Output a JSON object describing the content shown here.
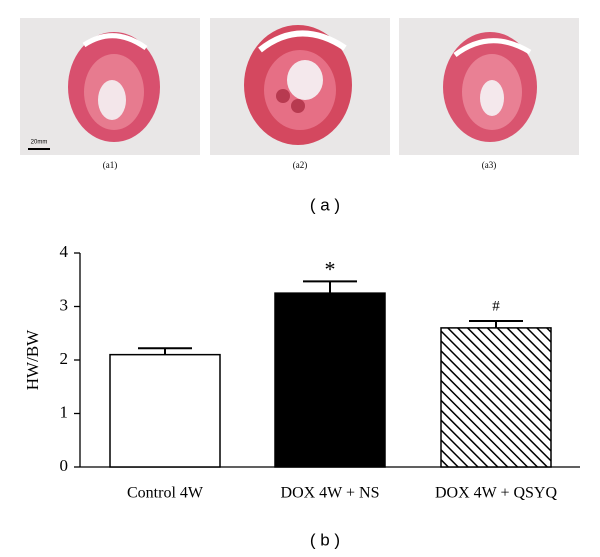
{
  "panels": {
    "images": [
      {
        "label": "(a1)",
        "scale": "20mm"
      },
      {
        "label": "(a2)"
      },
      {
        "label": "(a3)"
      }
    ],
    "caption": "( a )"
  },
  "chart_data": {
    "type": "bar",
    "caption": "( b )",
    "y_label": "HW/BW",
    "categories": [
      "Control 4W",
      "DOX 4W + NS",
      "DOX 4W + QSYQ"
    ],
    "values": [
      2.1,
      3.25,
      2.6
    ],
    "errors": [
      0.12,
      0.22,
      0.13
    ],
    "fills": [
      "white",
      "black",
      "hatched"
    ],
    "annotations": [
      {
        "text": "*",
        "category": "DOX 4W + NS"
      },
      {
        "text": "#",
        "category": "DOX 4W + QSYQ"
      }
    ],
    "ylim": [
      0,
      4
    ],
    "yticks": [
      0,
      1,
      2,
      3,
      4
    ]
  }
}
